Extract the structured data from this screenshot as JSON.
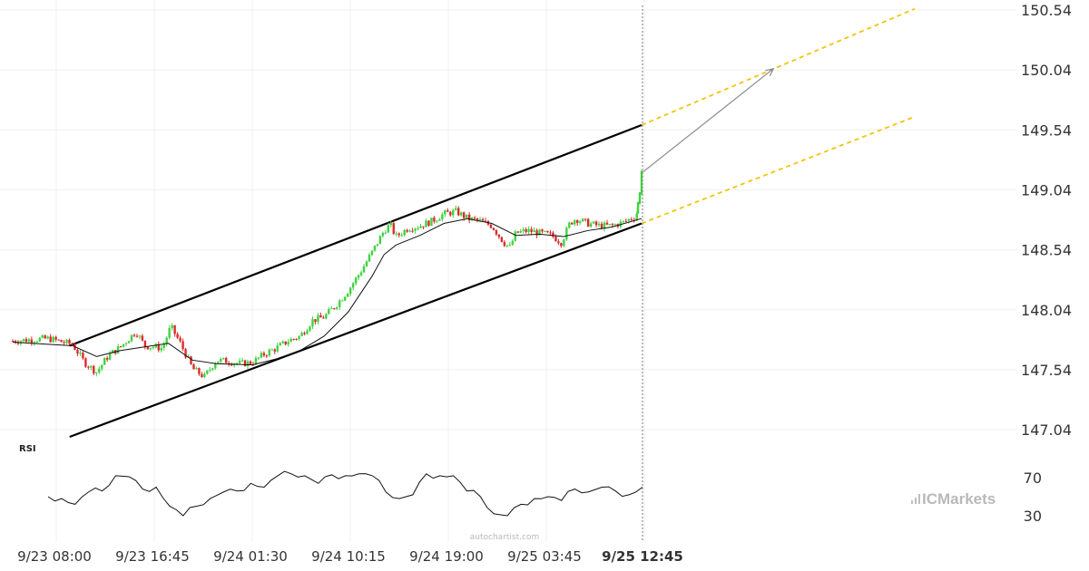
{
  "chart_data": {
    "type": "candlestick",
    "instrument_note": "",
    "price_axis": {
      "ticks": [
        "147.04",
        "147.54",
        "148.04",
        "148.54",
        "149.04",
        "149.54",
        "150.04",
        "150.54"
      ],
      "range": [
        146.94,
        150.58
      ]
    },
    "time_axis": {
      "ticks": [
        "9/23 08:00",
        "9/23 16:45",
        "9/24 01:30",
        "9/24 10:15",
        "9/24 19:00",
        "9/25 03:45",
        "9/25 12:45"
      ],
      "highlighted": "9/25 12:45"
    },
    "price_path": [
      {
        "t": 0,
        "p": 147.78
      },
      {
        "t": 3,
        "p": 147.8
      },
      {
        "t": 5,
        "p": 147.75
      },
      {
        "t": 6,
        "p": 147.6
      },
      {
        "t": 7,
        "p": 147.52
      },
      {
        "t": 8,
        "p": 147.66
      },
      {
        "t": 9,
        "p": 147.73
      },
      {
        "t": 10.3,
        "p": 147.86
      },
      {
        "t": 11,
        "p": 147.74
      },
      {
        "t": 12.5,
        "p": 147.72
      },
      {
        "t": 13.2,
        "p": 147.9
      },
      {
        "t": 14,
        "p": 147.76
      },
      {
        "t": 15,
        "p": 147.55
      },
      {
        "t": 16,
        "p": 147.48
      },
      {
        "t": 17,
        "p": 147.62
      },
      {
        "t": 18,
        "p": 147.61
      },
      {
        "t": 19,
        "p": 147.59
      },
      {
        "t": 20,
        "p": 147.6
      },
      {
        "t": 21,
        "p": 147.67
      },
      {
        "t": 22,
        "p": 147.72
      },
      {
        "t": 23,
        "p": 147.78
      },
      {
        "t": 24,
        "p": 147.82
      },
      {
        "t": 25,
        "p": 147.95
      },
      {
        "t": 26,
        "p": 147.98
      },
      {
        "t": 27,
        "p": 148.08
      },
      {
        "t": 28,
        "p": 148.2
      },
      {
        "t": 29,
        "p": 148.35
      },
      {
        "t": 30,
        "p": 148.52
      },
      {
        "t": 31,
        "p": 148.7
      },
      {
        "t": 31.5,
        "p": 148.75
      },
      {
        "t": 32,
        "p": 148.65
      },
      {
        "t": 33,
        "p": 148.72
      },
      {
        "t": 34,
        "p": 148.74
      },
      {
        "t": 35,
        "p": 148.78
      },
      {
        "t": 36,
        "p": 148.84
      },
      {
        "t": 37,
        "p": 148.86
      },
      {
        "t": 38,
        "p": 148.8
      },
      {
        "t": 39,
        "p": 148.78
      },
      {
        "t": 40,
        "p": 148.74
      },
      {
        "t": 41,
        "p": 148.6
      },
      {
        "t": 41.5,
        "p": 148.56
      },
      {
        "t": 42,
        "p": 148.68
      },
      {
        "t": 43,
        "p": 148.7
      },
      {
        "t": 44,
        "p": 148.68
      },
      {
        "t": 45,
        "p": 148.66
      },
      {
        "t": 45.8,
        "p": 148.6
      },
      {
        "t": 46.5,
        "p": 148.76
      },
      {
        "t": 47,
        "p": 148.8
      },
      {
        "t": 48,
        "p": 148.76
      },
      {
        "t": 49,
        "p": 148.74
      },
      {
        "t": 50,
        "p": 148.74
      },
      {
        "t": 51,
        "p": 148.77
      },
      {
        "t": 52,
        "p": 148.82
      },
      {
        "t": 52.3,
        "p": 148.9
      },
      {
        "t": 52.5,
        "p": 149.18
      }
    ],
    "moving_average": [
      {
        "t": 0,
        "p": 147.77
      },
      {
        "t": 5,
        "p": 147.74
      },
      {
        "t": 7,
        "p": 147.65
      },
      {
        "t": 9,
        "p": 147.7
      },
      {
        "t": 11,
        "p": 147.73
      },
      {
        "t": 13,
        "p": 147.76
      },
      {
        "t": 15,
        "p": 147.62
      },
      {
        "t": 17,
        "p": 147.59
      },
      {
        "t": 20,
        "p": 147.58
      },
      {
        "t": 22,
        "p": 147.63
      },
      {
        "t": 24,
        "p": 147.7
      },
      {
        "t": 26,
        "p": 147.82
      },
      {
        "t": 28,
        "p": 148.02
      },
      {
        "t": 30,
        "p": 148.32
      },
      {
        "t": 31,
        "p": 148.5
      },
      {
        "t": 32,
        "p": 148.58
      },
      {
        "t": 34,
        "p": 148.66
      },
      {
        "t": 36,
        "p": 148.76
      },
      {
        "t": 38,
        "p": 148.8
      },
      {
        "t": 40,
        "p": 148.76
      },
      {
        "t": 42,
        "p": 148.66
      },
      {
        "t": 44,
        "p": 148.67
      },
      {
        "t": 46,
        "p": 148.65
      },
      {
        "t": 48,
        "p": 148.7
      },
      {
        "t": 50,
        "p": 148.73
      },
      {
        "t": 52.5,
        "p": 148.8
      }
    ],
    "channel": {
      "upper": {
        "from": {
          "t": 4.75,
          "p": 147.74
        },
        "to": {
          "t": 52.5,
          "p": 149.58
        }
      },
      "lower": {
        "from": {
          "t": 4.75,
          "p": 146.98
        },
        "to": {
          "t": 52.5,
          "p": 148.76
        }
      },
      "projection_upper": {
        "from": {
          "t": 52.5,
          "p": 149.58
        },
        "to": {
          "t": 75.3,
          "p": 150.55
        }
      },
      "projection_lower": {
        "from": {
          "t": 52.5,
          "p": 148.76
        },
        "to": {
          "t": 75.3,
          "p": 149.65
        }
      },
      "target_arrow": {
        "from": {
          "t": 52.5,
          "p": 149.18
        },
        "to": {
          "t": 63.5,
          "p": 150.05
        }
      }
    },
    "current_time_marker": {
      "t": 52.5
    },
    "rsi": {
      "label": "RSI",
      "levels": [
        "70",
        "30"
      ],
      "values": [
        {
          "t": 0,
          "v": 50
        },
        {
          "t": 1,
          "v": 48
        },
        {
          "t": 2,
          "v": 42
        },
        {
          "t": 3,
          "v": 55
        },
        {
          "t": 4,
          "v": 56
        },
        {
          "t": 5,
          "v": 72
        },
        {
          "t": 6,
          "v": 71
        },
        {
          "t": 7,
          "v": 58
        },
        {
          "t": 8,
          "v": 60
        },
        {
          "t": 9,
          "v": 40
        },
        {
          "t": 10,
          "v": 30
        },
        {
          "t": 11,
          "v": 40
        },
        {
          "t": 12,
          "v": 48
        },
        {
          "t": 13,
          "v": 55
        },
        {
          "t": 14,
          "v": 56
        },
        {
          "t": 15,
          "v": 64
        },
        {
          "t": 16,
          "v": 60
        },
        {
          "t": 17,
          "v": 72
        },
        {
          "t": 18,
          "v": 74
        },
        {
          "t": 19,
          "v": 72
        },
        {
          "t": 20,
          "v": 64
        },
        {
          "t": 21,
          "v": 73
        },
        {
          "t": 22,
          "v": 72
        },
        {
          "t": 23,
          "v": 74
        },
        {
          "t": 24,
          "v": 72
        },
        {
          "t": 25,
          "v": 55
        },
        {
          "t": 26,
          "v": 48
        },
        {
          "t": 27,
          "v": 52
        },
        {
          "t": 28,
          "v": 74
        },
        {
          "t": 29,
          "v": 72
        },
        {
          "t": 30,
          "v": 72
        },
        {
          "t": 31,
          "v": 56
        },
        {
          "t": 32,
          "v": 50
        },
        {
          "t": 33,
          "v": 32
        },
        {
          "t": 34,
          "v": 30
        },
        {
          "t": 35,
          "v": 42
        },
        {
          "t": 36,
          "v": 48
        },
        {
          "t": 37,
          "v": 50
        },
        {
          "t": 38,
          "v": 46
        },
        {
          "t": 39,
          "v": 58
        },
        {
          "t": 40,
          "v": 55
        },
        {
          "t": 41,
          "v": 60
        },
        {
          "t": 42,
          "v": 56
        },
        {
          "t": 43,
          "v": 52
        },
        {
          "t": 44,
          "v": 60
        }
      ]
    },
    "colors": {
      "bull_candle": "#3fd33f",
      "bear_candle": "#d92b2b",
      "channel_line": "#000000",
      "projection_line": "#f2c40f",
      "arrow": "#8a8a8a",
      "grid": "#f0f0f0"
    },
    "watermark": "autochartist.com",
    "brand": {
      "text": "ICMarkets",
      "icon": "bar-chart-icon"
    }
  }
}
